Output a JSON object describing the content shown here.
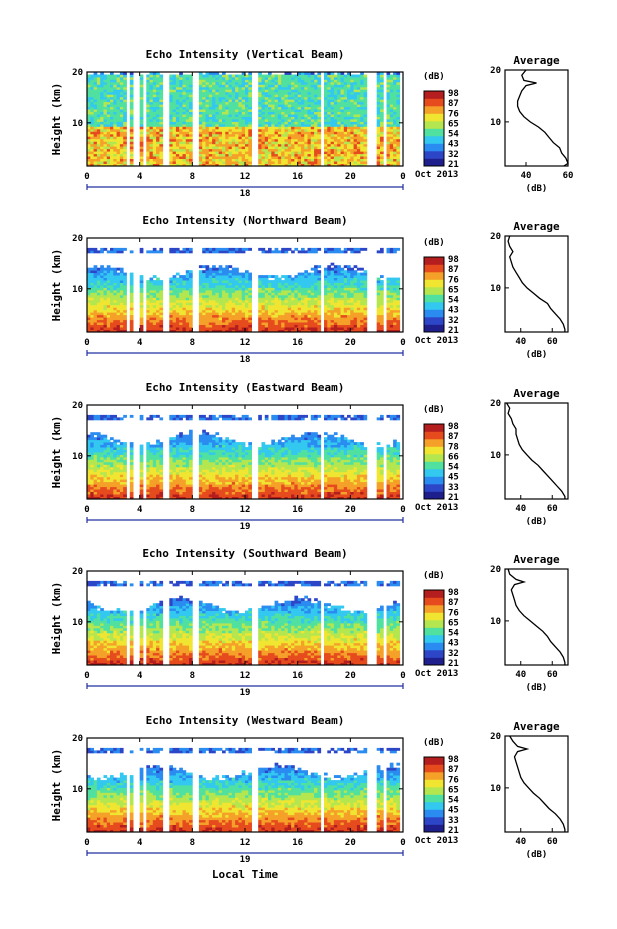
{
  "chart_data": [
    {
      "type": "heatmap",
      "title": "Echo Intensity (Vertical Beam)",
      "ylabel": "Height (km)",
      "xlim": [
        0,
        24
      ],
      "ylim": [
        1.5,
        20
      ],
      "xticks": [
        "0",
        "4",
        "8",
        "12",
        "16",
        "20",
        "0"
      ],
      "yticks": [
        "10",
        "20"
      ],
      "date_number": "18",
      "date_label": "Oct 2013",
      "cbar_unit": "(dB)",
      "cbar_ticks": [
        "21",
        "32",
        "43",
        "54",
        "65",
        "76",
        "87",
        "98"
      ],
      "avg": {
        "title": "Average",
        "xlabel": "(dB)",
        "xticks": [
          "40",
          "60"
        ],
        "yticks": [
          "10",
          "20"
        ],
        "xlim": [
          30,
          60
        ],
        "profile": [
          [
            1.5,
            58
          ],
          [
            2,
            60
          ],
          [
            3,
            59
          ],
          [
            4,
            57
          ],
          [
            5,
            56
          ],
          [
            6,
            53
          ],
          [
            7,
            51
          ],
          [
            8,
            49
          ],
          [
            9,
            46
          ],
          [
            10,
            42
          ],
          [
            11,
            39
          ],
          [
            12,
            37
          ],
          [
            13,
            36
          ],
          [
            14,
            36
          ],
          [
            15,
            37
          ],
          [
            16,
            38
          ],
          [
            17,
            40
          ],
          [
            17.5,
            45
          ],
          [
            18,
            39
          ],
          [
            19,
            38
          ],
          [
            20,
            40
          ]
        ]
      }
    },
    {
      "type": "heatmap",
      "title": "Echo Intensity (Northward Beam)",
      "ylabel": "Height (km)",
      "xlim": [
        0,
        24
      ],
      "ylim": [
        1.5,
        20
      ],
      "xticks": [
        "0",
        "4",
        "8",
        "12",
        "16",
        "20",
        "0"
      ],
      "yticks": [
        "10",
        "20"
      ],
      "date_number": "18",
      "date_label": "Oct 2013",
      "cbar_unit": "(dB)",
      "cbar_ticks": [
        "21",
        "32",
        "43",
        "54",
        "65",
        "76",
        "87",
        "98"
      ],
      "avg": {
        "title": "Average",
        "xlabel": "(dB)",
        "xticks": [
          "40",
          "60"
        ],
        "yticks": [
          "10",
          "20"
        ],
        "xlim": [
          30,
          70
        ],
        "profile": [
          [
            1.5,
            68
          ],
          [
            2,
            68
          ],
          [
            3,
            67
          ],
          [
            4,
            65
          ],
          [
            5,
            62
          ],
          [
            6,
            59
          ],
          [
            7,
            57
          ],
          [
            8,
            52
          ],
          [
            9,
            48
          ],
          [
            10,
            44
          ],
          [
            11,
            41
          ],
          [
            12,
            39
          ],
          [
            13,
            37
          ],
          [
            14,
            35
          ],
          [
            15,
            34
          ],
          [
            16,
            33
          ],
          [
            17,
            35
          ],
          [
            18,
            33
          ],
          [
            19,
            32
          ],
          [
            20,
            33
          ]
        ]
      }
    },
    {
      "type": "heatmap",
      "title": "Echo Intensity (Eastward Beam)",
      "ylabel": "Height (km)",
      "xlim": [
        0,
        24
      ],
      "ylim": [
        1.5,
        20
      ],
      "xticks": [
        "0",
        "4",
        "8",
        "12",
        "16",
        "20",
        "0"
      ],
      "yticks": [
        "10",
        "20"
      ],
      "date_number": "19",
      "date_label": "Oct 2013",
      "cbar_unit": "(dB)",
      "cbar_ticks": [
        "21",
        "33",
        "45",
        "54",
        "66",
        "78",
        "87",
        "98"
      ],
      "avg": {
        "title": "Average",
        "xlabel": "(dB)",
        "xticks": [
          "40",
          "60"
        ],
        "yticks": [
          "10",
          "20"
        ],
        "xlim": [
          30,
          70
        ],
        "profile": [
          [
            1.5,
            68
          ],
          [
            2,
            68
          ],
          [
            3,
            66
          ],
          [
            4,
            63
          ],
          [
            5,
            60
          ],
          [
            6,
            57
          ],
          [
            7,
            54
          ],
          [
            8,
            51
          ],
          [
            9,
            47
          ],
          [
            10,
            44
          ],
          [
            11,
            41
          ],
          [
            12,
            39
          ],
          [
            13,
            38
          ],
          [
            14,
            37
          ],
          [
            15,
            37
          ],
          [
            16,
            35
          ],
          [
            17,
            34
          ],
          [
            18,
            32
          ],
          [
            19,
            33
          ],
          [
            20,
            31
          ]
        ]
      }
    },
    {
      "type": "heatmap",
      "title": "Echo Intensity (Southward Beam)",
      "ylabel": "Height (km)",
      "xlim": [
        0,
        24
      ],
      "ylim": [
        1.5,
        20
      ],
      "xticks": [
        "0",
        "4",
        "8",
        "12",
        "16",
        "20",
        "0"
      ],
      "yticks": [
        "10",
        "20"
      ],
      "date_number": "19",
      "date_label": "Oct 2013",
      "cbar_unit": "(dB)",
      "cbar_ticks": [
        "21",
        "32",
        "43",
        "54",
        "65",
        "76",
        "87",
        "98"
      ],
      "avg": {
        "title": "Average",
        "xlabel": "(dB)",
        "xticks": [
          "40",
          "60"
        ],
        "yticks": [
          "10",
          "20"
        ],
        "xlim": [
          30,
          70
        ],
        "profile": [
          [
            1.5,
            68
          ],
          [
            2,
            68
          ],
          [
            3,
            67
          ],
          [
            4,
            65
          ],
          [
            5,
            62
          ],
          [
            6,
            59
          ],
          [
            7,
            57
          ],
          [
            8,
            54
          ],
          [
            9,
            50
          ],
          [
            10,
            46
          ],
          [
            11,
            42
          ],
          [
            12,
            39
          ],
          [
            13,
            37
          ],
          [
            14,
            36
          ],
          [
            15,
            35
          ],
          [
            16,
            34
          ],
          [
            17,
            36
          ],
          [
            17.5,
            42
          ],
          [
            18,
            37
          ],
          [
            19,
            33
          ],
          [
            20,
            32
          ]
        ]
      }
    },
    {
      "type": "heatmap",
      "title": "Echo Intensity (Westward Beam)",
      "ylabel": "Height (km)",
      "xlim": [
        0,
        24
      ],
      "ylim": [
        1.5,
        20
      ],
      "xticks": [
        "0",
        "4",
        "8",
        "12",
        "16",
        "20",
        "0"
      ],
      "yticks": [
        "10",
        "20"
      ],
      "date_number": "19",
      "date_label": "Oct 2013",
      "cbar_unit": "(dB)",
      "cbar_ticks": [
        "21",
        "33",
        "45",
        "54",
        "65",
        "76",
        "87",
        "98"
      ],
      "avg": {
        "title": "Average",
        "xlabel": "(dB)",
        "xticks": [
          "40",
          "60"
        ],
        "yticks": [
          "10",
          "20"
        ],
        "xlim": [
          30,
          70
        ],
        "profile": [
          [
            1.5,
            68
          ],
          [
            2,
            68
          ],
          [
            3,
            67
          ],
          [
            4,
            65
          ],
          [
            5,
            62
          ],
          [
            6,
            58
          ],
          [
            7,
            55
          ],
          [
            8,
            52
          ],
          [
            9,
            48
          ],
          [
            10,
            45
          ],
          [
            11,
            42
          ],
          [
            12,
            40
          ],
          [
            13,
            39
          ],
          [
            14,
            38
          ],
          [
            15,
            37
          ],
          [
            16,
            36
          ],
          [
            17,
            38
          ],
          [
            17.5,
            44
          ],
          [
            18,
            38
          ],
          [
            19,
            35
          ],
          [
            20,
            33
          ]
        ]
      }
    }
  ],
  "xlabel": "Local Time",
  "colors": {
    "scale": [
      "#1e1e8c",
      "#2d46c8",
      "#2a8cf0",
      "#32c8f0",
      "#50e0a0",
      "#b4e650",
      "#f0e632",
      "#f5a028",
      "#e64b1e",
      "#b41e1e"
    ],
    "axis": "#000000",
    "datebar": "#2030a0"
  }
}
